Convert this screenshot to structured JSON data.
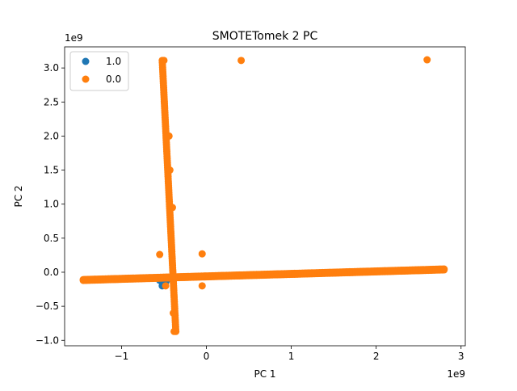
{
  "chart_data": {
    "type": "scatter",
    "title": "SMOTETomek 2 PC",
    "xlabel": "PC 1",
    "ylabel": "PC 2",
    "x_offset_label": "1e9",
    "y_offset_label": "1e9",
    "xlim": [
      -1.67,
      3.05
    ],
    "ylim": [
      -1.08,
      3.31
    ],
    "x_ticks": [
      -1,
      0,
      1,
      2,
      3
    ],
    "x_tick_labels": [
      "−1",
      "0",
      "1",
      "2",
      "3"
    ],
    "y_ticks": [
      -1.0,
      -0.5,
      0.0,
      0.5,
      1.0,
      1.5,
      2.0,
      2.5,
      3.0
    ],
    "y_tick_labels": [
      "−1.0",
      "−0.5",
      "0.0",
      "0.5",
      "1.0",
      "1.5",
      "2.0",
      "2.5",
      "3.0"
    ],
    "grid": false,
    "legend_position": "top-left",
    "colors": {
      "series_1": "#1f77b4",
      "series_0": "#ff7f0e"
    },
    "series": [
      {
        "name": "1.0",
        "color": "#1f77b4",
        "points": [
          [
            -0.52,
            -0.2
          ],
          [
            -0.48,
            -0.15
          ],
          [
            -0.45,
            -0.1
          ],
          [
            -0.4,
            -0.05
          ],
          [
            -0.55,
            -0.12
          ]
        ]
      },
      {
        "name": "0.0",
        "color": "#ff7f0e",
        "vertical_band": {
          "x_from": -0.52,
          "x_to": -0.36,
          "y_from": 3.11,
          "y_to": -0.87,
          "count": 120
        },
        "horizontal_band": {
          "x_from": -1.45,
          "x_to": 2.8,
          "y_from": -0.12,
          "y_to": 0.035,
          "count": 230
        },
        "points": [
          [
            0.41,
            3.11
          ],
          [
            2.6,
            3.12
          ],
          [
            -0.05,
            0.27
          ],
          [
            -0.55,
            0.26
          ],
          [
            -0.05,
            -0.2
          ],
          [
            -1.15,
            -0.1
          ],
          [
            -0.48,
            -0.2
          ],
          [
            -0.38,
            -0.87
          ],
          [
            -0.39,
            -0.6
          ],
          [
            -0.5,
            3.11
          ],
          [
            -0.44,
            2.0
          ],
          [
            -0.43,
            1.5
          ],
          [
            -0.4,
            0.95
          ]
        ]
      }
    ]
  }
}
